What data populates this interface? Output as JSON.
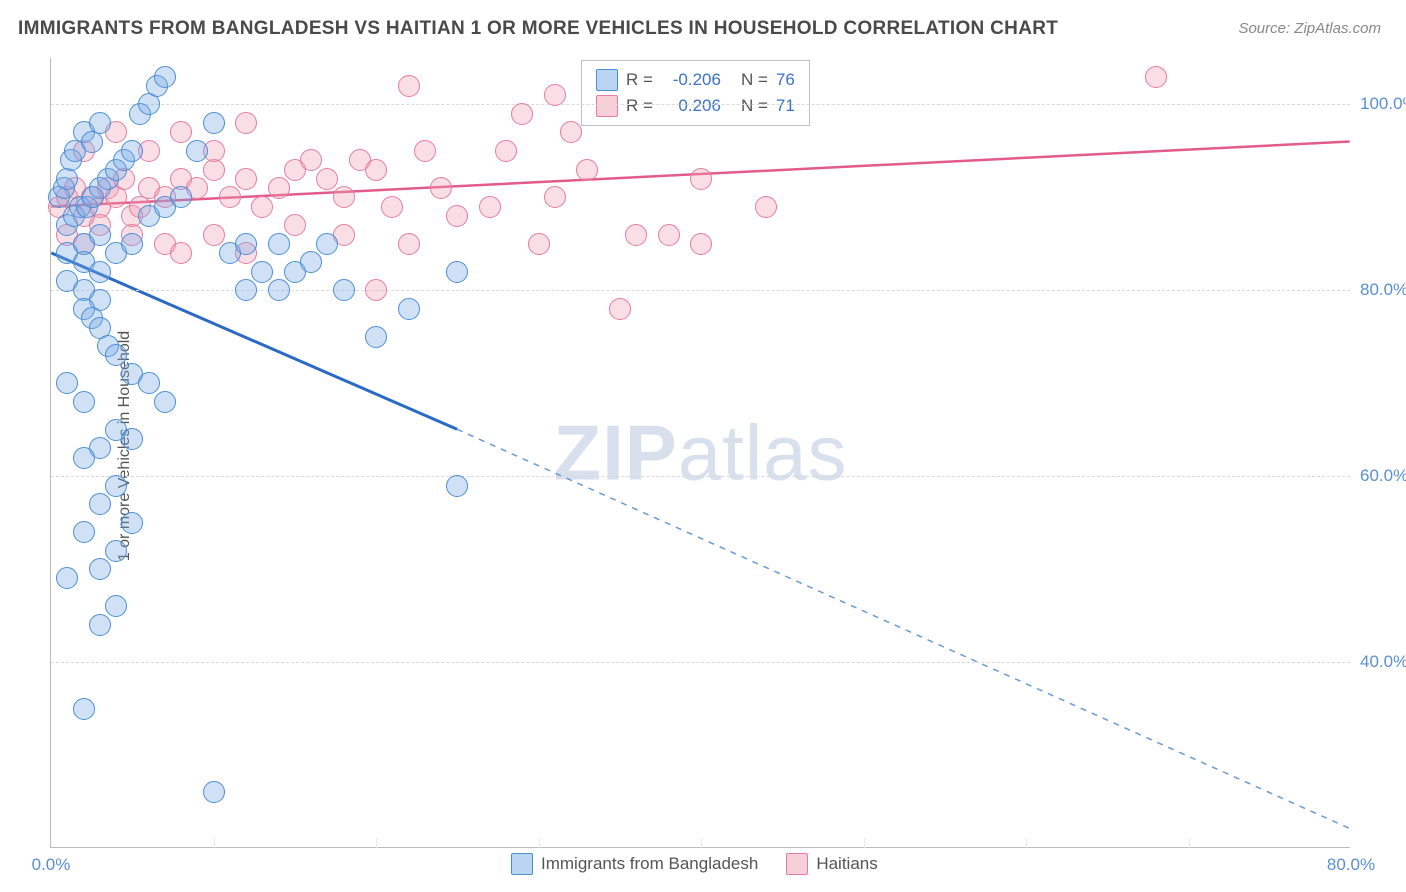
{
  "title": "IMMIGRANTS FROM BANGLADESH VS HAITIAN 1 OR MORE VEHICLES IN HOUSEHOLD CORRELATION CHART",
  "source_label": "Source: ZipAtlas.com",
  "ylabel": "1 or more Vehicles in Household",
  "watermark": {
    "bold": "ZIP",
    "rest": "atlas"
  },
  "chart": {
    "type": "scatter",
    "xlim": [
      0,
      80
    ],
    "ylim": [
      20,
      105
    ],
    "xticks": [
      {
        "val": 0,
        "label": "0.0%"
      },
      {
        "val": 80,
        "label": "80.0%"
      }
    ],
    "xtick_minor": [
      10,
      20,
      30,
      40,
      50,
      60,
      70
    ],
    "yticks": [
      {
        "val": 40,
        "label": "40.0%"
      },
      {
        "val": 60,
        "label": "60.0%"
      },
      {
        "val": 80,
        "label": "80.0%"
      },
      {
        "val": 100,
        "label": "100.0%"
      }
    ],
    "plot_bg": "#ffffff",
    "grid_color": "#d8d8d8",
    "axis_color": "#bbbbbb",
    "tick_label_color": "#5a8fd4",
    "tick_fontsize": 17,
    "marker_radius": 11
  },
  "series": {
    "blue": {
      "label": "Immigrants from Bangladesh",
      "color_fill": "rgba(120,170,230,0.35)",
      "color_stroke": "#4b8fd6",
      "R": "-0.206",
      "N": "76",
      "trend": {
        "x1": 0,
        "y1": 84,
        "xsolid": 25,
        "ysolid": 65,
        "x2": 80,
        "y2": 22,
        "solid_color": "#2a6ac4",
        "solid_width": 3,
        "dash_color": "#6a9ad6",
        "dash_width": 1.5,
        "dash": "6 6"
      },
      "points": [
        [
          0.5,
          90
        ],
        [
          0.8,
          91
        ],
        [
          1,
          92
        ],
        [
          1.2,
          94
        ],
        [
          1.5,
          95
        ],
        [
          2,
          97
        ],
        [
          2.5,
          96
        ],
        [
          3,
          98
        ],
        [
          1,
          87
        ],
        [
          1.4,
          88
        ],
        [
          1.8,
          89
        ],
        [
          2.2,
          89
        ],
        [
          2.6,
          90
        ],
        [
          3,
          91
        ],
        [
          3.5,
          92
        ],
        [
          4,
          93
        ],
        [
          4.5,
          94
        ],
        [
          5,
          95
        ],
        [
          5.5,
          99
        ],
        [
          6,
          100
        ],
        [
          6.5,
          102
        ],
        [
          7,
          103
        ],
        [
          1,
          84
        ],
        [
          2,
          85
        ],
        [
          3,
          86
        ],
        [
          2,
          83
        ],
        [
          3,
          82
        ],
        [
          4,
          84
        ],
        [
          5,
          85
        ],
        [
          6,
          88
        ],
        [
          7,
          89
        ],
        [
          8,
          90
        ],
        [
          9,
          95
        ],
        [
          10,
          98
        ],
        [
          11,
          84
        ],
        [
          12,
          85
        ],
        [
          15,
          82
        ],
        [
          18,
          80
        ],
        [
          1,
          81
        ],
        [
          2,
          80
        ],
        [
          3,
          79
        ],
        [
          2,
          78
        ],
        [
          2.5,
          77
        ],
        [
          3,
          76
        ],
        [
          3.5,
          74
        ],
        [
          4,
          73
        ],
        [
          5,
          71
        ],
        [
          6,
          70
        ],
        [
          7,
          68
        ],
        [
          1,
          70
        ],
        [
          2,
          68
        ],
        [
          4,
          65
        ],
        [
          5,
          64
        ],
        [
          3,
          63
        ],
        [
          2,
          62
        ],
        [
          4,
          59
        ],
        [
          3,
          57
        ],
        [
          5,
          55
        ],
        [
          2,
          54
        ],
        [
          4,
          52
        ],
        [
          3,
          50
        ],
        [
          1,
          49
        ],
        [
          4,
          46
        ],
        [
          3,
          44
        ],
        [
          2,
          35
        ],
        [
          10,
          26
        ],
        [
          13,
          82
        ],
        [
          14,
          85
        ],
        [
          17,
          85
        ],
        [
          12,
          80
        ],
        [
          14,
          80
        ],
        [
          16,
          83
        ],
        [
          25,
          59
        ],
        [
          20,
          75
        ],
        [
          22,
          78
        ],
        [
          25,
          82
        ]
      ]
    },
    "pink": {
      "label": "Haitians",
      "color_fill": "rgba(240,160,180,0.35)",
      "color_stroke": "#e67ca0",
      "R": "0.206",
      "N": "71",
      "trend": {
        "x1": 0,
        "y1": 89,
        "x2": 80,
        "y2": 96,
        "solid_color": "#e35b8a",
        "solid_width": 2.5
      },
      "points": [
        [
          0.5,
          89
        ],
        [
          1,
          90
        ],
        [
          1.5,
          91
        ],
        [
          2,
          88
        ],
        [
          2.5,
          90
        ],
        [
          3,
          89
        ],
        [
          3.5,
          91
        ],
        [
          4,
          90
        ],
        [
          4.5,
          92
        ],
        [
          5,
          88
        ],
        [
          5.5,
          89
        ],
        [
          6,
          91
        ],
        [
          7,
          90
        ],
        [
          8,
          92
        ],
        [
          9,
          91
        ],
        [
          10,
          93
        ],
        [
          11,
          90
        ],
        [
          12,
          92
        ],
        [
          13,
          89
        ],
        [
          14,
          91
        ],
        [
          15,
          93
        ],
        [
          16,
          94
        ],
        [
          17,
          92
        ],
        [
          18,
          90
        ],
        [
          19,
          94
        ],
        [
          20,
          93
        ],
        [
          21,
          89
        ],
        [
          22,
          102
        ],
        [
          23,
          95
        ],
        [
          24,
          91
        ],
        [
          1,
          86
        ],
        [
          2,
          85
        ],
        [
          3,
          87
        ],
        [
          5,
          86
        ],
        [
          7,
          85
        ],
        [
          8,
          84
        ],
        [
          10,
          86
        ],
        [
          12,
          84
        ],
        [
          15,
          87
        ],
        [
          18,
          86
        ],
        [
          20,
          80
        ],
        [
          22,
          85
        ],
        [
          25,
          88
        ],
        [
          27,
          89
        ],
        [
          30,
          85
        ],
        [
          32,
          97
        ],
        [
          35,
          78
        ],
        [
          38,
          86
        ],
        [
          40,
          92
        ],
        [
          28,
          95
        ],
        [
          31,
          90
        ],
        [
          33,
          93
        ],
        [
          36,
          86
        ],
        [
          40,
          85
        ],
        [
          44,
          89
        ],
        [
          2,
          95
        ],
        [
          4,
          97
        ],
        [
          6,
          95
        ],
        [
          8,
          97
        ],
        [
          10,
          95
        ],
        [
          12,
          98
        ],
        [
          29,
          99
        ],
        [
          31,
          101
        ],
        [
          68,
          103
        ]
      ]
    }
  },
  "legend": {
    "rows": [
      {
        "series": "blue",
        "R_label": "R =",
        "N_label": "N ="
      },
      {
        "series": "pink",
        "R_label": "R =",
        "N_label": "N ="
      }
    ]
  },
  "bottom_legend": [
    {
      "series": "blue"
    },
    {
      "series": "pink"
    }
  ]
}
